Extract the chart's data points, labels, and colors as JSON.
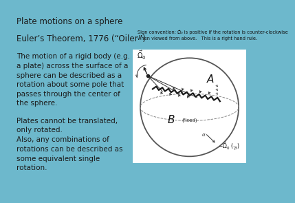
{
  "background_color": "#6db8cc",
  "title": "Plate motions on a sphere",
  "subtitle": "Euler’s Theorem, 1776 (“Oiler”)",
  "para1": "The motion of a rigid body (e.g.\na plate) across the surface of a\nsphere can be described as a\nrotation about some pole that\npasses through the center of\nthe sphere.",
  "para2": "Plates cannot be translated,\nonly rotated.",
  "para3": "Also, any combinations of\nrotations can be described as\nsome equivalent single\nrotation.",
  "text_color": "#1c1c1c",
  "font_size": 7.5,
  "title_font_size": 8.5,
  "diagram_caption_line1": "Sign convention: Ω̂₀ is positive if the rotation is counter-clockwise",
  "diagram_caption_line2": "when viewed from above.   This is a right hand rule.",
  "diagram_caption_fontsize": 4.8
}
